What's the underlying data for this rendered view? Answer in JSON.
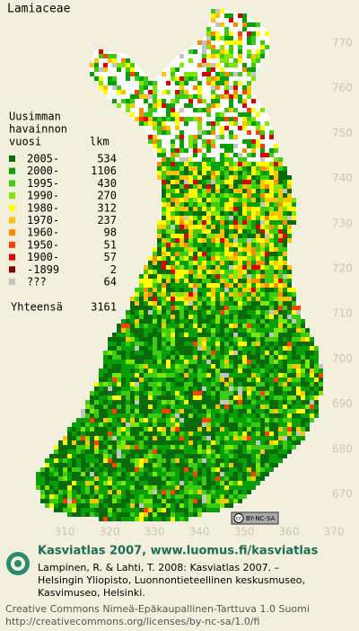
{
  "title": "Lamiaceae",
  "axes": {
    "y_ticks": [
      770,
      760,
      750,
      740,
      730,
      720,
      710,
      700,
      690,
      680,
      670
    ],
    "x_ticks": [
      310,
      320,
      330,
      340,
      350,
      360,
      370
    ]
  },
  "legend": {
    "heading": [
      "Uusimman",
      "havainnon",
      "vuosi"
    ],
    "count_heading": "lkm",
    "items": [
      {
        "label": "2005-",
        "count": 534,
        "color": "#0b6b0b"
      },
      {
        "label": "2000-",
        "count": 1106,
        "color": "#07a007"
      },
      {
        "label": "1995-",
        "count": 430,
        "color": "#3ccc10"
      },
      {
        "label": "1990-",
        "count": 270,
        "color": "#7ee800"
      },
      {
        "label": "1980-",
        "count": 312,
        "color": "#ffff00"
      },
      {
        "label": "1970-",
        "count": 237,
        "color": "#ffc400"
      },
      {
        "label": "1960-",
        "count": 98,
        "color": "#ff8a00"
      },
      {
        "label": "1950-",
        "count": 51,
        "color": "#ff4000"
      },
      {
        "label": "1900-",
        "count": 57,
        "color": "#e00000"
      },
      {
        "label": "-1899",
        "count": 2,
        "color": "#800000"
      },
      {
        "label": "???",
        "count": 64,
        "color": "#c4c4c4"
      }
    ],
    "total_label": "Yhteensä",
    "total": 3161
  },
  "badge": "BY-NC-SA",
  "footer": {
    "headline": "Kasviatlas 2007, www.luomus.fi/kasviatlas",
    "citation": [
      "Lampinen, R. & Lahti, T. 2008: Kasviatlas 2007. –",
      "Helsingin Yliopisto, Luonnontieteellinen keskusmuseo,",
      "Kasvimuseo, Helsinki."
    ],
    "license": [
      "Creative Commons Nimeä-Epäkaupallinen-Tarttuva 1.0 Suomi",
      "http://creativecommons.org/licenses/by-nc-sa/1.0/fi"
    ]
  }
}
